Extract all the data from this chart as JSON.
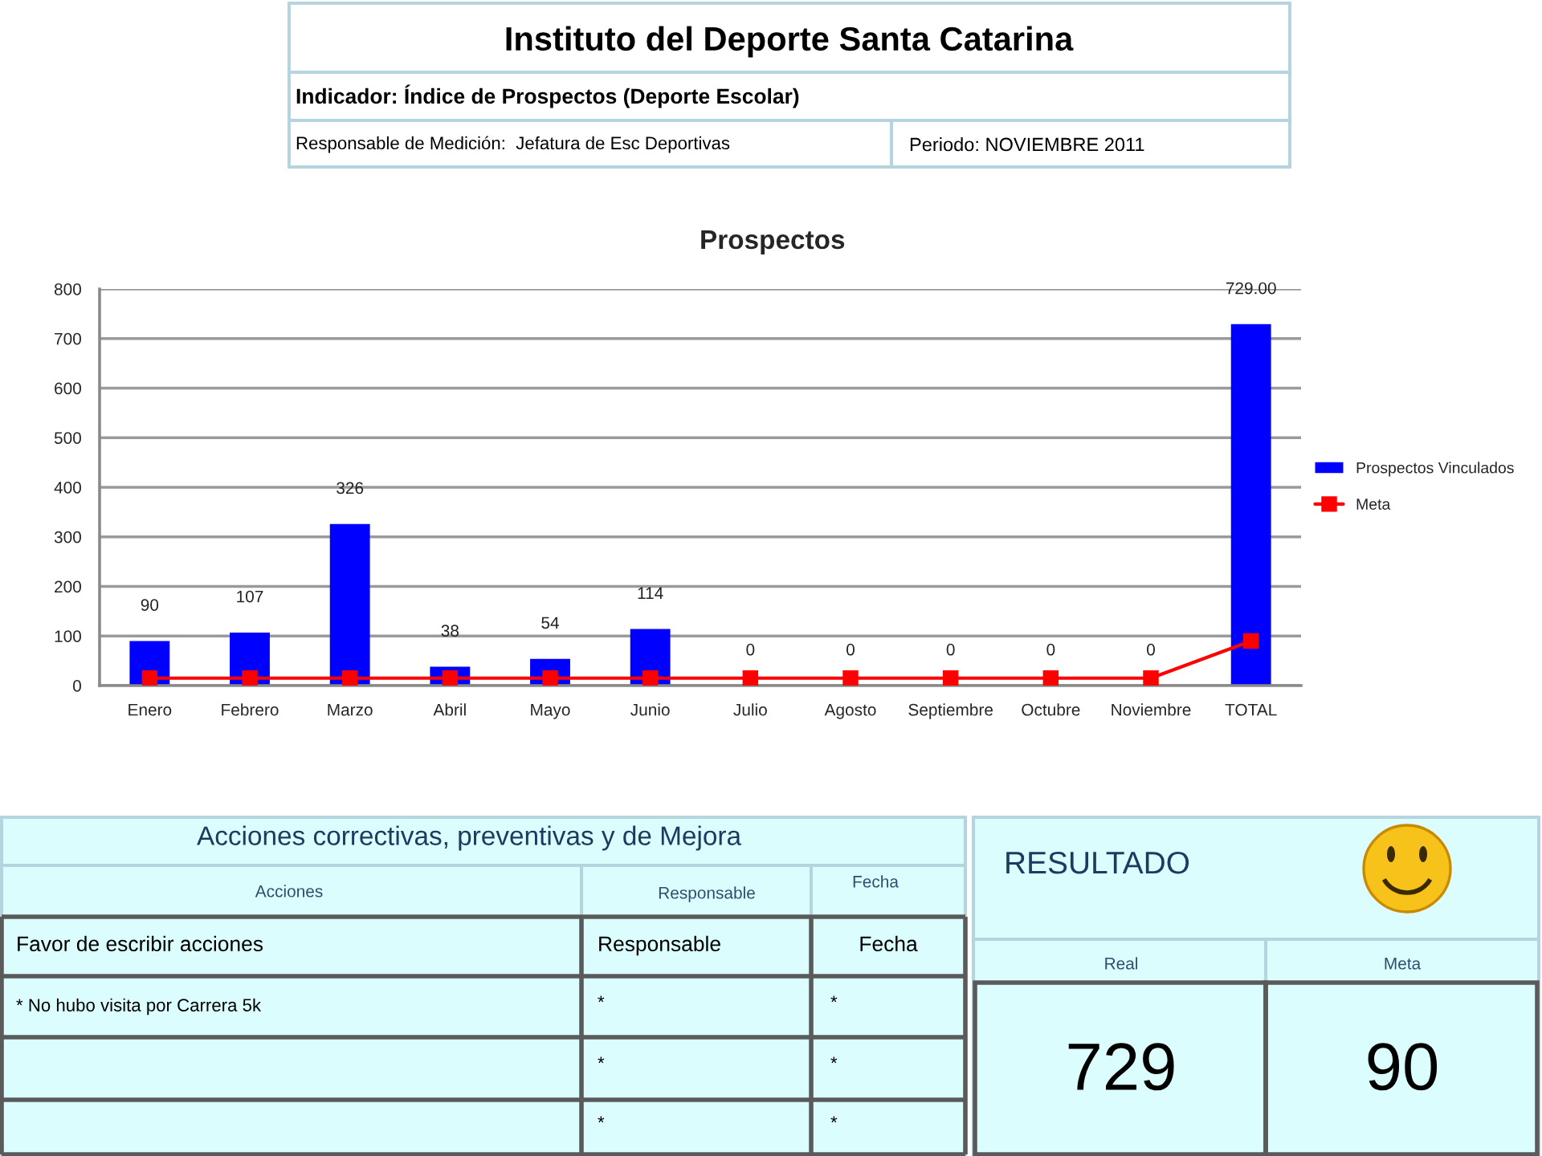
{
  "chart_data": [
    {
      "type": "other",
      "title": "Instituto del Deporte Santa Catarina",
      "annotations": [
        "Indicador: Índice de Prospectos (Deporte Escolar)",
        "Responsable de Medición:  Jefatura de Esc Deportivas",
        "Periodo: NOVIEMBRE 2011"
      ]
    },
    {
      "type": "bar",
      "title": "Prospectos",
      "categories": [
        "Enero",
        "Febrero",
        "Marzo",
        "Abril",
        "Mayo",
        "Junio",
        "Julio",
        "Agosto",
        "Septiembre",
        "Octubre",
        "Noviembre",
        "TOTAL"
      ],
      "series": [
        {
          "name": "Prospectos Vinculados",
          "type": "bar",
          "color": "#0000ff",
          "values": [
            90,
            107,
            326,
            38,
            54,
            114,
            0,
            0,
            0,
            0,
            0,
            729
          ],
          "value_labels": [
            "90",
            "107",
            "326",
            "38",
            "54",
            "114",
            "0",
            "0",
            "0",
            "0",
            "0",
            "729.00"
          ]
        },
        {
          "name": "Meta",
          "type": "line",
          "color": "#ff0000",
          "marker": "square",
          "values": [
            15,
            15,
            15,
            15,
            15,
            15,
            15,
            15,
            15,
            15,
            15,
            90
          ]
        }
      ],
      "ylim": [
        0,
        800
      ],
      "yticks": [
        0,
        100,
        200,
        300,
        400,
        500,
        600,
        700,
        800
      ],
      "grid": "y",
      "legend": "right"
    },
    {
      "type": "other",
      "title": "Acciones correctivas, preventivas y de Mejora",
      "annotations": [
        "Acciones",
        "Responsable",
        "Fecha",
        "Favor de escribir acciones",
        "Responsable",
        "Fecha",
        "* No hubo visita por Carrera 5k",
        "*",
        "*",
        "*",
        "*",
        "*",
        "*"
      ]
    },
    {
      "type": "other",
      "title": "RESULTADO",
      "annotations": [
        "Real",
        "Meta",
        "729",
        "90"
      ]
    }
  ]
}
